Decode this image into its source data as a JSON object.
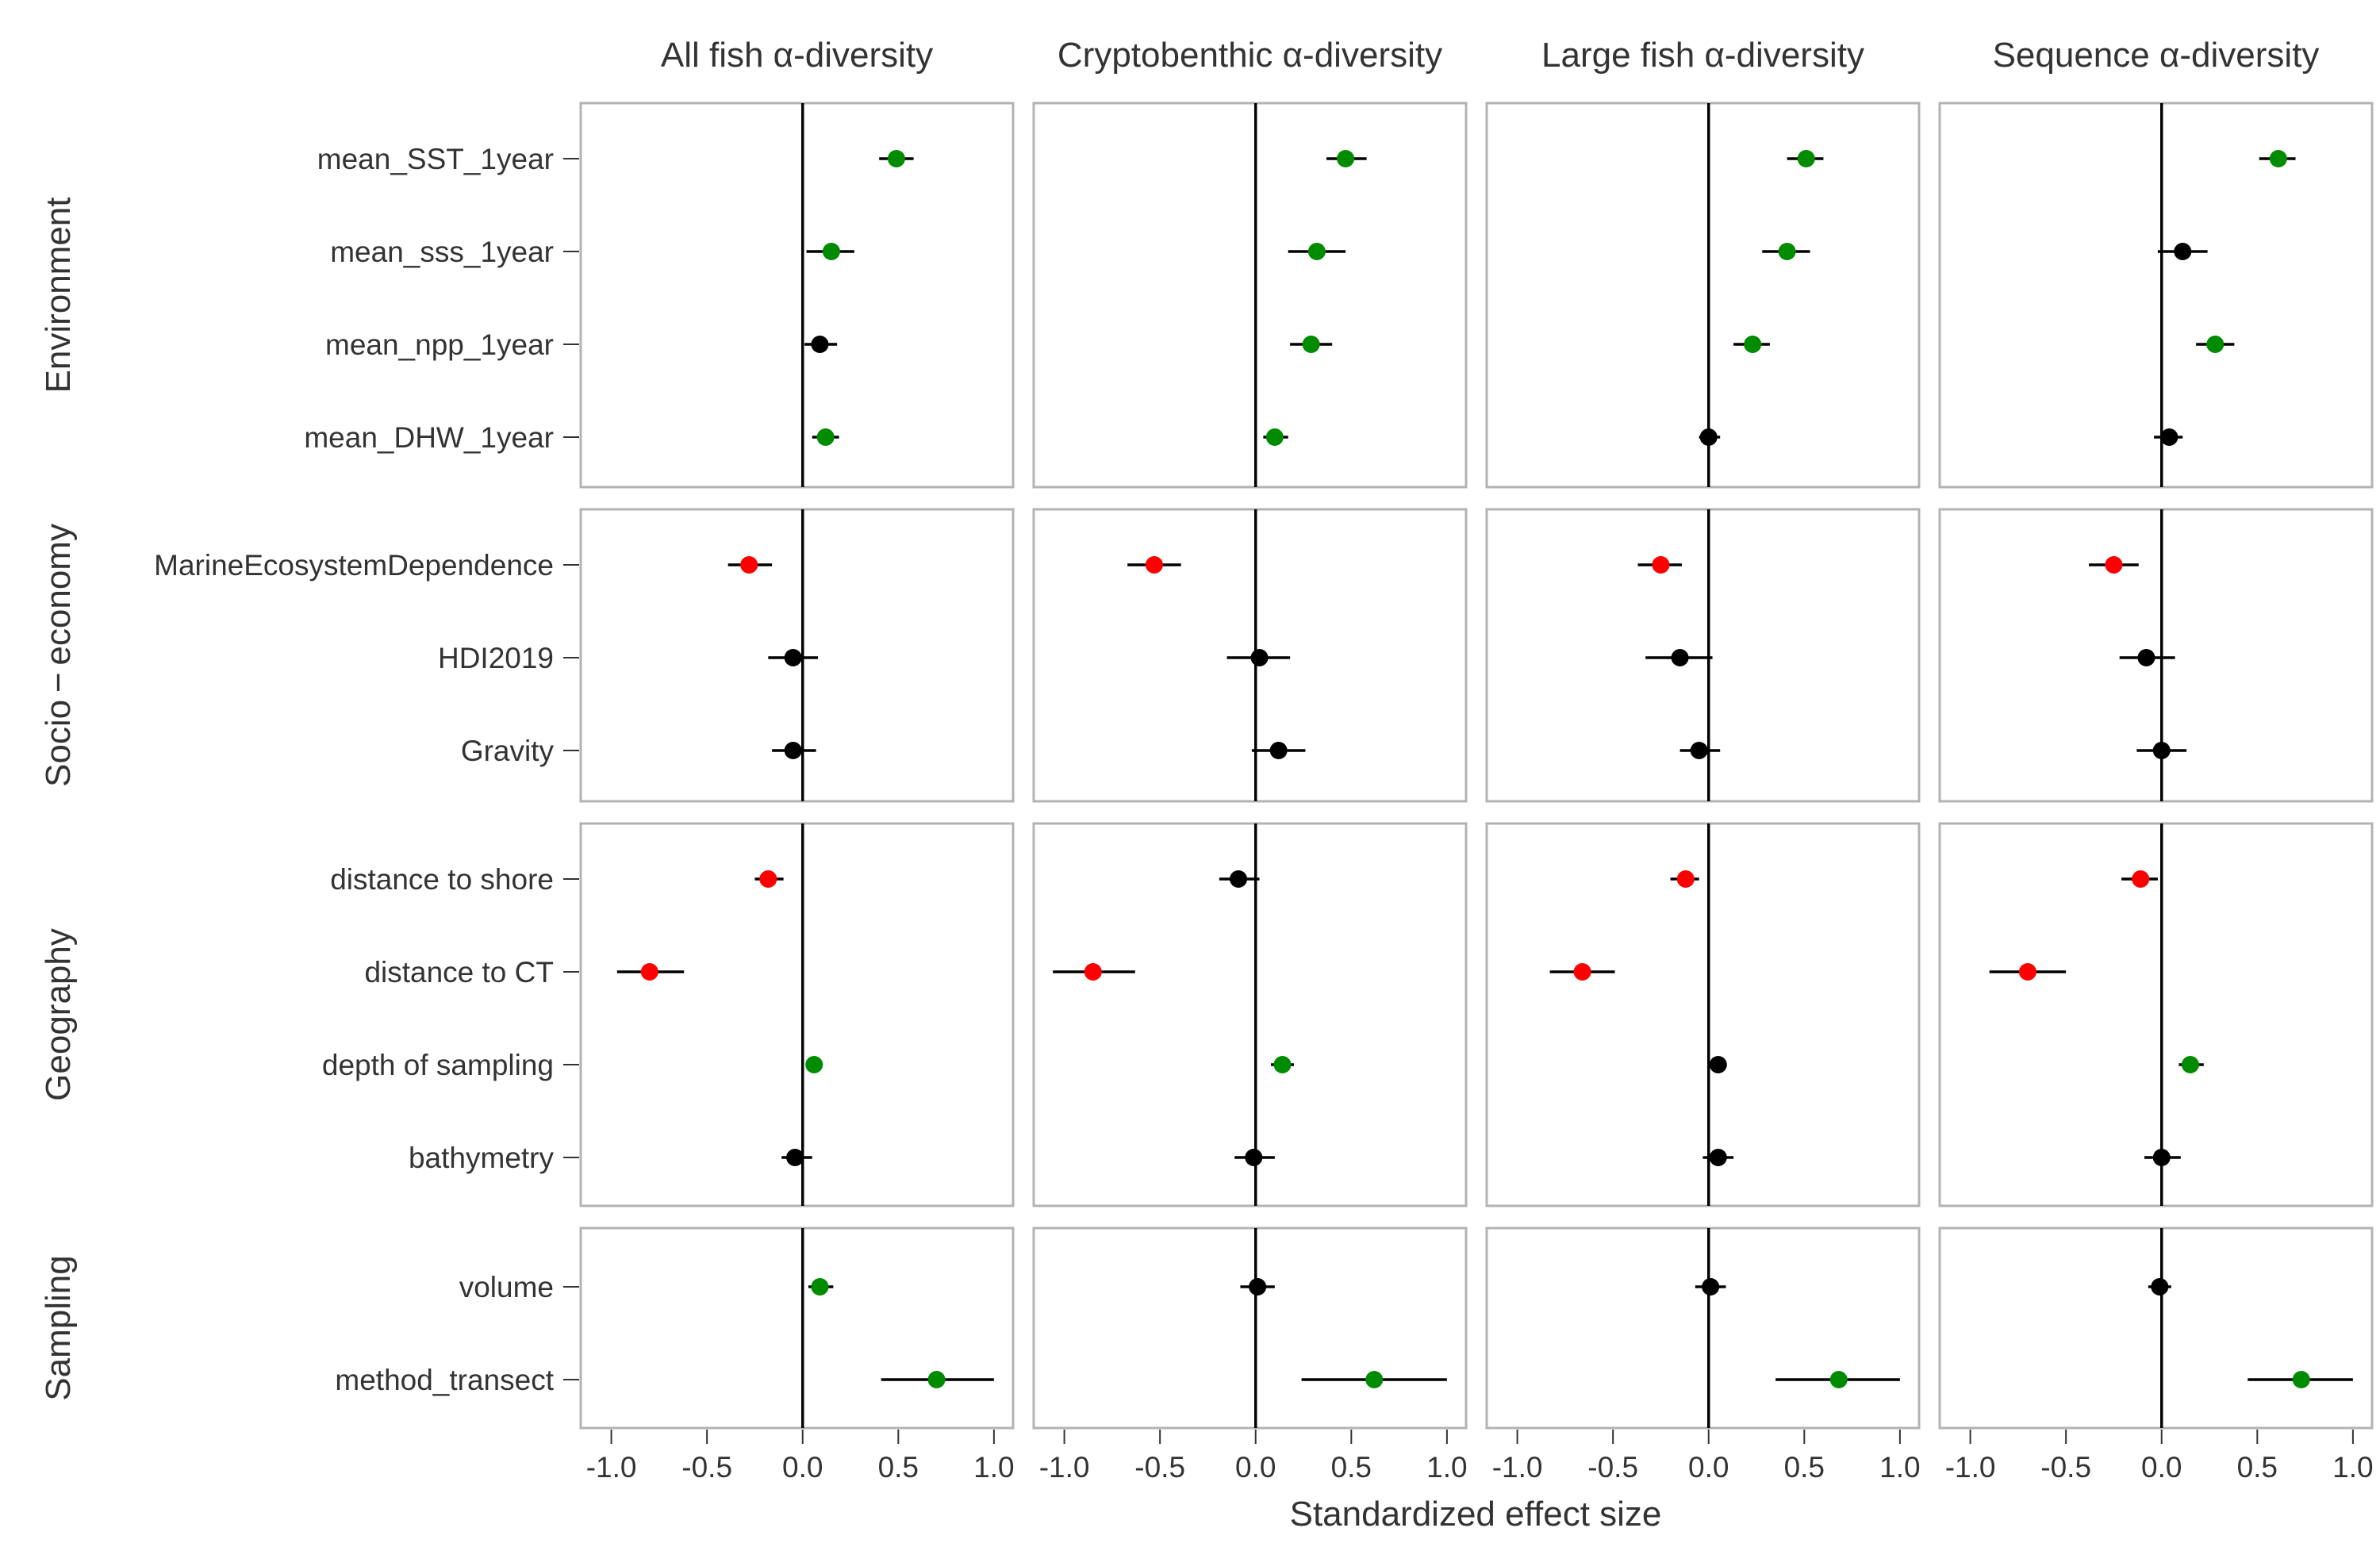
{
  "chart_data": {
    "type": "scatter",
    "subtype": "forest-plot",
    "xlabel": "Standardized effect size",
    "xlim": [
      -1.16,
      1.1
    ],
    "x_ticks": [
      -1.0,
      -0.5,
      0.0,
      0.5,
      1.0
    ],
    "x_tick_labels": [
      "-1.0",
      "-0.5",
      "0.0",
      "0.5",
      "1.0"
    ],
    "zero_line": 0,
    "grid": false,
    "colors": {
      "positive": "#008b00",
      "negative": "#ff0000",
      "ns": "#000000"
    },
    "columns": [
      "All fish α-diversity",
      "Cryptobenthic α-diversity",
      "Large fish α-diversity",
      "Sequence α-diversity"
    ],
    "groups": [
      {
        "name": "Environment",
        "variables": [
          "mean_SST_1year",
          "mean_sss_1year",
          "mean_npp_1year",
          "mean_DHW_1year"
        ]
      },
      {
        "name": "Socio − economy",
        "variables": [
          "MarineEcosystemDependence",
          "HDI2019",
          "Gravity"
        ]
      },
      {
        "name": "Geography",
        "variables": [
          "distance to shore",
          "distance to CT",
          "depth of sampling",
          "bathymetry"
        ]
      },
      {
        "name": "Sampling",
        "variables": [
          "volume",
          "method_transect"
        ]
      }
    ],
    "estimates": [
      [
        [
          {
            "est": 0.49,
            "lo": 0.4,
            "hi": 0.58,
            "sig": "positive"
          },
          {
            "est": 0.15,
            "lo": 0.02,
            "hi": 0.27,
            "sig": "positive"
          },
          {
            "est": 0.09,
            "lo": 0.01,
            "hi": 0.18,
            "sig": "ns"
          },
          {
            "est": 0.12,
            "lo": 0.05,
            "hi": 0.19,
            "sig": "positive"
          }
        ],
        [
          {
            "est": -0.28,
            "lo": -0.39,
            "hi": -0.16,
            "sig": "negative"
          },
          {
            "est": -0.05,
            "lo": -0.18,
            "hi": 0.08,
            "sig": "ns"
          },
          {
            "est": -0.05,
            "lo": -0.16,
            "hi": 0.07,
            "sig": "ns"
          }
        ],
        [
          {
            "est": -0.18,
            "lo": -0.25,
            "hi": -0.1,
            "sig": "negative"
          },
          {
            "est": -0.8,
            "lo": -0.97,
            "hi": -0.62,
            "sig": "negative"
          },
          {
            "est": 0.06,
            "lo": 0.02,
            "hi": 0.1,
            "sig": "positive"
          },
          {
            "est": -0.04,
            "lo": -0.11,
            "hi": 0.05,
            "sig": "ns"
          }
        ],
        [
          {
            "est": 0.09,
            "lo": 0.03,
            "hi": 0.16,
            "sig": "positive"
          },
          {
            "est": 0.7,
            "lo": 0.41,
            "hi": 1.0,
            "sig": "positive"
          }
        ]
      ],
      [
        [
          {
            "est": 0.47,
            "lo": 0.37,
            "hi": 0.58,
            "sig": "positive"
          },
          {
            "est": 0.32,
            "lo": 0.17,
            "hi": 0.47,
            "sig": "positive"
          },
          {
            "est": 0.29,
            "lo": 0.18,
            "hi": 0.4,
            "sig": "positive"
          },
          {
            "est": 0.1,
            "lo": 0.04,
            "hi": 0.17,
            "sig": "positive"
          }
        ],
        [
          {
            "est": -0.53,
            "lo": -0.67,
            "hi": -0.39,
            "sig": "negative"
          },
          {
            "est": 0.02,
            "lo": -0.15,
            "hi": 0.18,
            "sig": "ns"
          },
          {
            "est": 0.12,
            "lo": -0.02,
            "hi": 0.26,
            "sig": "ns"
          }
        ],
        [
          {
            "est": -0.09,
            "lo": -0.19,
            "hi": 0.02,
            "sig": "ns"
          },
          {
            "est": -0.85,
            "lo": -1.06,
            "hi": -0.63,
            "sig": "negative"
          },
          {
            "est": 0.14,
            "lo": 0.08,
            "hi": 0.2,
            "sig": "positive"
          },
          {
            "est": -0.01,
            "lo": -0.11,
            "hi": 0.1,
            "sig": "ns"
          }
        ],
        [
          {
            "est": 0.01,
            "lo": -0.08,
            "hi": 0.1,
            "sig": "ns"
          },
          {
            "est": 0.62,
            "lo": 0.24,
            "hi": 1.0,
            "sig": "positive"
          }
        ]
      ],
      [
        [
          {
            "est": 0.51,
            "lo": 0.41,
            "hi": 0.6,
            "sig": "positive"
          },
          {
            "est": 0.41,
            "lo": 0.28,
            "hi": 0.53,
            "sig": "positive"
          },
          {
            "est": 0.23,
            "lo": 0.13,
            "hi": 0.32,
            "sig": "positive"
          },
          {
            "est": 0.0,
            "lo": -0.05,
            "hi": 0.06,
            "sig": "ns"
          }
        ],
        [
          {
            "est": -0.25,
            "lo": -0.37,
            "hi": -0.14,
            "sig": "negative"
          },
          {
            "est": -0.15,
            "lo": -0.33,
            "hi": 0.02,
            "sig": "ns"
          },
          {
            "est": -0.05,
            "lo": -0.15,
            "hi": 0.06,
            "sig": "ns"
          }
        ],
        [
          {
            "est": -0.12,
            "lo": -0.2,
            "hi": -0.05,
            "sig": "negative"
          },
          {
            "est": -0.66,
            "lo": -0.83,
            "hi": -0.49,
            "sig": "negative"
          },
          {
            "est": 0.05,
            "lo": 0.03,
            "hi": 0.07,
            "sig": "ns"
          },
          {
            "est": 0.05,
            "lo": -0.03,
            "hi": 0.13,
            "sig": "ns"
          }
        ],
        [
          {
            "est": 0.01,
            "lo": -0.07,
            "hi": 0.09,
            "sig": "ns"
          },
          {
            "est": 0.68,
            "lo": 0.35,
            "hi": 1.0,
            "sig": "positive"
          }
        ]
      ],
      [
        [
          {
            "est": 0.61,
            "lo": 0.51,
            "hi": 0.7,
            "sig": "positive"
          },
          {
            "est": 0.11,
            "lo": -0.02,
            "hi": 0.24,
            "sig": "ns"
          },
          {
            "est": 0.28,
            "lo": 0.18,
            "hi": 0.38,
            "sig": "positive"
          },
          {
            "est": 0.04,
            "lo": -0.04,
            "hi": 0.11,
            "sig": "ns"
          }
        ],
        [
          {
            "est": -0.25,
            "lo": -0.38,
            "hi": -0.12,
            "sig": "negative"
          },
          {
            "est": -0.08,
            "lo": -0.22,
            "hi": 0.07,
            "sig": "ns"
          },
          {
            "est": 0.0,
            "lo": -0.13,
            "hi": 0.13,
            "sig": "ns"
          }
        ],
        [
          {
            "est": -0.11,
            "lo": -0.21,
            "hi": -0.02,
            "sig": "negative"
          },
          {
            "est": -0.7,
            "lo": -0.9,
            "hi": -0.5,
            "sig": "negative"
          },
          {
            "est": 0.15,
            "lo": 0.09,
            "hi": 0.22,
            "sig": "positive"
          },
          {
            "est": 0.0,
            "lo": -0.09,
            "hi": 0.1,
            "sig": "ns"
          }
        ],
        [
          {
            "est": -0.01,
            "lo": -0.07,
            "hi": 0.05,
            "sig": "ns"
          },
          {
            "est": 0.73,
            "lo": 0.45,
            "hi": 1.0,
            "sig": "positive"
          }
        ]
      ]
    ]
  }
}
